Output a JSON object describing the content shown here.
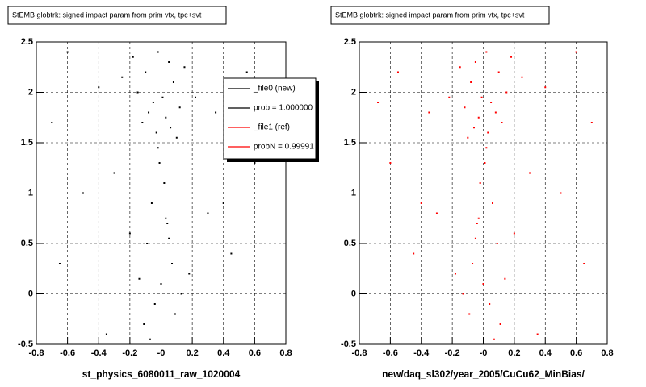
{
  "chart_data": [
    {
      "type": "scatter",
      "title": "StEMB globtrk: signed impact param from prim vtx, tpc+svt",
      "xlabel": "st_physics_6080011_raw_1020004",
      "color": "#000000",
      "grid": true,
      "xlim": [
        -0.8,
        0.8
      ],
      "xticks": [
        -0.8,
        -0.6,
        -0.4,
        -0.2,
        {
          "value": 0,
          "label": "-0"
        },
        0.2,
        0.4,
        0.6,
        0.8
      ],
      "ylim": [
        -0.5,
        2.5
      ],
      "yticks": [
        -0.5,
        0,
        0.5,
        1,
        1.5,
        2,
        2.5
      ],
      "legend": [
        {
          "name": "_file0 (new)",
          "color": "#000000"
        },
        {
          "name": "prob = 1.000000",
          "color": "#000000"
        },
        {
          "name": "_file1 (ref)",
          "color": "#ff0000"
        },
        {
          "name": "probN = 0.99991",
          "color": "#ff0000"
        }
      ],
      "x": [
        -0.02,
        0.05,
        -0.1,
        0.08,
        -0.15,
        0.01,
        -0.05,
        0.12,
        -0.08,
        0.03,
        -0.12,
        0.06,
        -0.03,
        0.1,
        -0.18,
        0.15,
        -0.25,
        0.22,
        -0.4,
        0.35,
        -0.6,
        0.55,
        -0.7,
        0.68,
        -0.01,
        0.02,
        -0.06,
        0.04,
        -0.09,
        0.07,
        -0.3,
        0.3,
        -0.5,
        0.45,
        0.0,
        -0.04,
        0.09,
        -0.11,
        0.13,
        -0.2,
        0.18,
        -0.35,
        0.4,
        -0.65,
        0.6,
        -0.02,
        0.03,
        -0.07,
        0.05,
        -0.14
      ],
      "y": [
        2.4,
        2.3,
        2.2,
        2.1,
        2.0,
        1.95,
        1.9,
        1.85,
        1.8,
        1.75,
        1.7,
        1.65,
        1.6,
        1.55,
        2.35,
        2.25,
        2.15,
        1.95,
        2.05,
        1.8,
        2.4,
        2.2,
        1.7,
        1.9,
        1.3,
        1.1,
        0.9,
        0.7,
        0.5,
        0.3,
        1.2,
        0.8,
        1.0,
        0.4,
        0.1,
        -0.1,
        -0.2,
        -0.3,
        0.0,
        0.6,
        0.2,
        -0.4,
        0.9,
        0.3,
        1.3,
        1.45,
        0.75,
        -0.45,
        0.55,
        0.15
      ]
    },
    {
      "type": "scatter",
      "title": "StEMB globtrk: signed impact param from prim vtx, tpc+svt",
      "xlabel": "new/daq_sl302/year_2005/CuCu62_MinBias/",
      "color": "#ff0000",
      "grid": true,
      "xlim": [
        -0.8,
        0.8
      ],
      "xticks": [
        -0.8,
        -0.6,
        -0.4,
        -0.2,
        {
          "value": 0,
          "label": "-0"
        },
        0.2,
        0.4,
        0.6,
        0.8
      ],
      "ylim": [
        -0.5,
        2.5
      ],
      "yticks": [
        -0.5,
        0,
        0.5,
        1,
        1.5,
        2,
        2.5
      ],
      "x": [
        0.02,
        -0.05,
        0.1,
        -0.08,
        0.15,
        -0.01,
        0.05,
        -0.12,
        0.08,
        -0.03,
        0.12,
        -0.06,
        0.03,
        -0.1,
        0.18,
        -0.15,
        0.25,
        -0.22,
        0.4,
        -0.35,
        0.6,
        -0.55,
        0.7,
        -0.68,
        0.01,
        -0.02,
        0.06,
        -0.04,
        0.09,
        -0.07,
        0.3,
        -0.3,
        0.5,
        -0.45,
        0.0,
        0.04,
        -0.09,
        0.11,
        -0.13,
        0.2,
        -0.18,
        0.35,
        -0.4,
        0.65,
        -0.6,
        0.02,
        -0.03,
        0.07,
        -0.05,
        0.14
      ],
      "y": [
        2.4,
        2.3,
        2.2,
        2.1,
        2.0,
        1.95,
        1.9,
        1.85,
        1.8,
        1.75,
        1.7,
        1.65,
        1.6,
        1.55,
        2.35,
        2.25,
        2.15,
        1.95,
        2.05,
        1.8,
        2.4,
        2.2,
        1.7,
        1.9,
        1.3,
        1.1,
        0.9,
        0.7,
        0.5,
        0.3,
        1.2,
        0.8,
        1.0,
        0.4,
        0.1,
        -0.1,
        -0.2,
        -0.3,
        0.0,
        0.6,
        0.2,
        -0.4,
        0.9,
        0.3,
        1.3,
        1.45,
        0.75,
        -0.45,
        0.55,
        0.15
      ]
    }
  ]
}
